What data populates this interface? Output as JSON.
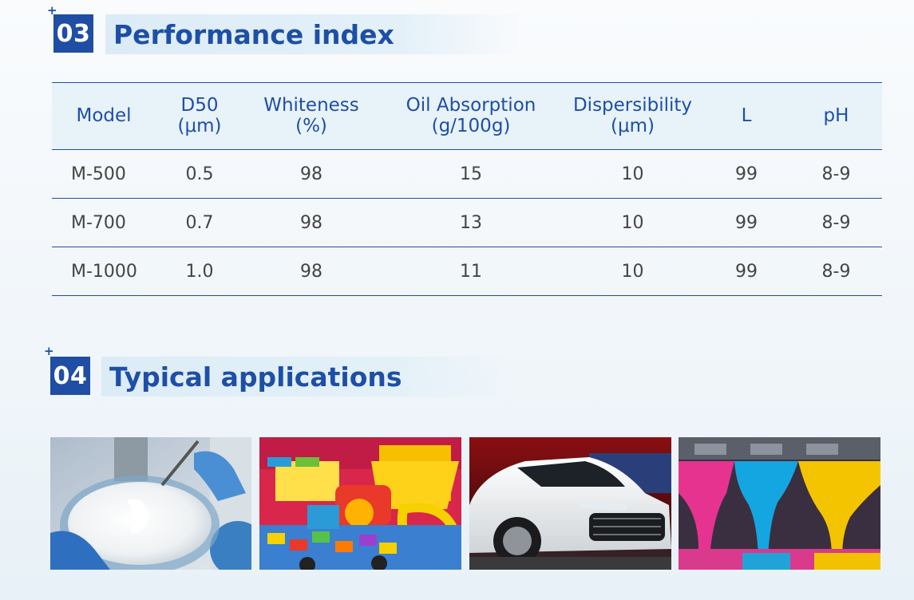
{
  "sections": {
    "performance": {
      "number": "03",
      "title": "Performance index"
    },
    "applications": {
      "number": "04",
      "title": "Typical applications"
    }
  },
  "table": {
    "headers": [
      [
        "Model"
      ],
      [
        "D50",
        "(μm)"
      ],
      [
        "Whiteness",
        "(%)"
      ],
      [
        "Oil Absorption",
        "(g/100g)"
      ],
      [
        "Dispersibility",
        "(μm)"
      ],
      [
        "L"
      ],
      [
        "pH"
      ]
    ],
    "rows": [
      [
        "M-500",
        "0.5",
        "98",
        "15",
        "10",
        "99",
        "8-9"
      ],
      [
        "M-700",
        "0.7",
        "98",
        "13",
        "10",
        "99",
        "8-9"
      ],
      [
        "M-1000",
        "1.0",
        "98",
        "11",
        "10",
        "99",
        "8-9"
      ]
    ]
  },
  "images": [
    {
      "icon": "white-paste-mixing-image"
    },
    {
      "icon": "colorful-plastic-toys-image"
    },
    {
      "icon": "white-car-image"
    },
    {
      "icon": "cmyk-ink-dripping-image"
    }
  ],
  "colors": {
    "brand_blue": "#1f4ea4",
    "header_bg": "#e8f2f9"
  }
}
